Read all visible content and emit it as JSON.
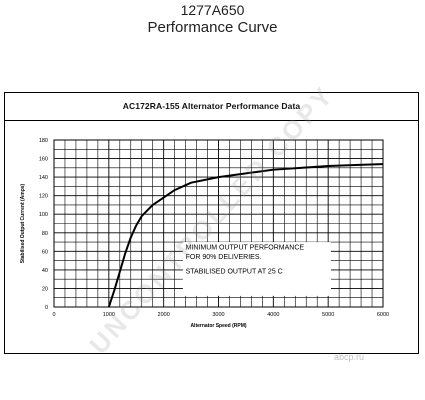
{
  "header": {
    "part_number": "1277A650",
    "subtitle": "Performance Curve"
  },
  "watermark": {
    "text": "UNCONTROLLED COPY",
    "logo": "abcp.ru"
  },
  "chart_data": {
    "type": "line",
    "title": "AC172RA-155 Alternator Performance Data",
    "xlabel": "Alternator Speed (RPM)",
    "ylabel": "Stabilised Output Current (Amps)",
    "xlim": [
      0,
      6000
    ],
    "ylim": [
      0,
      180
    ],
    "xticks": [
      0,
      1000,
      2000,
      3000,
      4000,
      5000,
      6000
    ],
    "yticks": [
      0,
      20,
      40,
      60,
      80,
      100,
      120,
      140,
      160,
      180
    ],
    "grid": true,
    "legend": "none",
    "annotations": [
      "MINIMUM OUTPUT PERFORMANCE",
      "FOR 90% DELIVERIES.",
      "STABILISED OUTPUT AT 25 C"
    ],
    "series": [
      {
        "x": [
          1000,
          1100,
          1200,
          1300,
          1400,
          1500,
          1600,
          1800,
          2000,
          2200,
          2500,
          3000,
          3500,
          4000,
          4500,
          5000,
          5500,
          6000
        ],
        "y": [
          0,
          18,
          38,
          58,
          75,
          88,
          98,
          110,
          118,
          126,
          134,
          140,
          144,
          148,
          150,
          152,
          153,
          154
        ]
      }
    ]
  }
}
